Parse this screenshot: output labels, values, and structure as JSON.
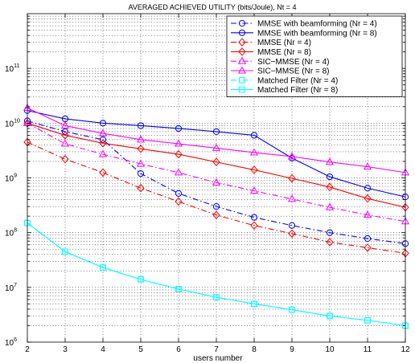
{
  "chart_data": {
    "type": "line",
    "title": "AVERAGED ACHIEVED UTILITY (bits/Joule), Nt = 4",
    "xlabel": "users number",
    "ylabel": "",
    "xlim": [
      2,
      12
    ],
    "ylim": [
      1000000,
      1000000000000
    ],
    "yscale": "log",
    "grid": true,
    "legend_position": "top-right",
    "x": [
      2,
      3,
      4,
      5,
      6,
      7,
      8,
      9,
      10,
      11,
      12
    ],
    "xticks": [
      "2",
      "3",
      "4",
      "5",
      "6",
      "7",
      "8",
      "9",
      "10",
      "11",
      "12"
    ],
    "yticks": [
      {
        "base": "10",
        "exp": "6",
        "value": 1000000
      },
      {
        "base": "10",
        "exp": "7",
        "value": 10000000
      },
      {
        "base": "10",
        "exp": "8",
        "value": 100000000
      },
      {
        "base": "10",
        "exp": "9",
        "value": 1000000000
      },
      {
        "base": "10",
        "exp": "10",
        "value": 10000000000
      },
      {
        "base": "10",
        "exp": "11",
        "value": 100000000000
      }
    ],
    "series": [
      {
        "name": "MMSE with beamforming (Nr = 4)",
        "color": "#0000ff",
        "dash": "dashdot",
        "marker": "circle",
        "values": [
          11000000000,
          7000000000,
          5000000000,
          1200000000,
          520000000,
          300000000,
          190000000,
          135000000,
          100000000,
          78000000,
          63000000
        ]
      },
      {
        "name": "MMSE with beamforming (Nr = 8)",
        "color": "#0000ff",
        "dash": "solid",
        "marker": "circle",
        "values": [
          17000000000,
          12000000000,
          10000000000,
          9000000000,
          8000000000,
          7000000000,
          6000000000,
          2300000000,
          1050000000,
          650000000,
          450000000
        ]
      },
      {
        "name": "MMSE (Nr = 4)",
        "color": "#ff0000",
        "dash": "dashdot",
        "marker": "diamond",
        "values": [
          4500000000,
          2200000000,
          1250000000,
          650000000,
          370000000,
          210000000,
          135000000,
          96000000,
          67000000,
          53000000,
          42000000
        ]
      },
      {
        "name": "MMSE (Nr = 8)",
        "color": "#ff0000",
        "dash": "solid",
        "marker": "diamond",
        "values": [
          10000000000,
          6000000000,
          4300000000,
          3400000000,
          2700000000,
          1950000000,
          1400000000,
          980000000,
          680000000,
          420000000,
          290000000
        ]
      },
      {
        "name": "SIC−MMSE (Nr = 4)",
        "color": "#ff00ff",
        "dash": "dashdot",
        "marker": "triangle",
        "values": [
          10000000000,
          4200000000,
          2700000000,
          1800000000,
          1250000000,
          820000000,
          580000000,
          410000000,
          290000000,
          210000000,
          160000000
        ]
      },
      {
        "name": "SIC−MMSE (Nr = 8)",
        "color": "#ff00ff",
        "dash": "solid",
        "marker": "triangle",
        "values": [
          19000000000,
          9000000000,
          6500000000,
          5000000000,
          4200000000,
          3500000000,
          2900000000,
          2450000000,
          1950000000,
          1600000000,
          1250000000
        ]
      },
      {
        "name": "Matched Filter (Nr = 4)",
        "color": "#00ffff",
        "dash": "dashdot",
        "marker": "square",
        "values": [
          150000000,
          45000000,
          23000000,
          14000000,
          9300000,
          6600000,
          5000000,
          3900000,
          3000000,
          2500000,
          2000000
        ]
      },
      {
        "name": "Matched Filter (Nr = 8)",
        "color": "#00ffff",
        "dash": "solid",
        "marker": "square",
        "values": [
          150000000,
          45000000,
          23000000,
          14000000,
          9300000,
          6600000,
          5000000,
          3900000,
          3000000,
          2500000,
          2000000
        ]
      }
    ]
  }
}
